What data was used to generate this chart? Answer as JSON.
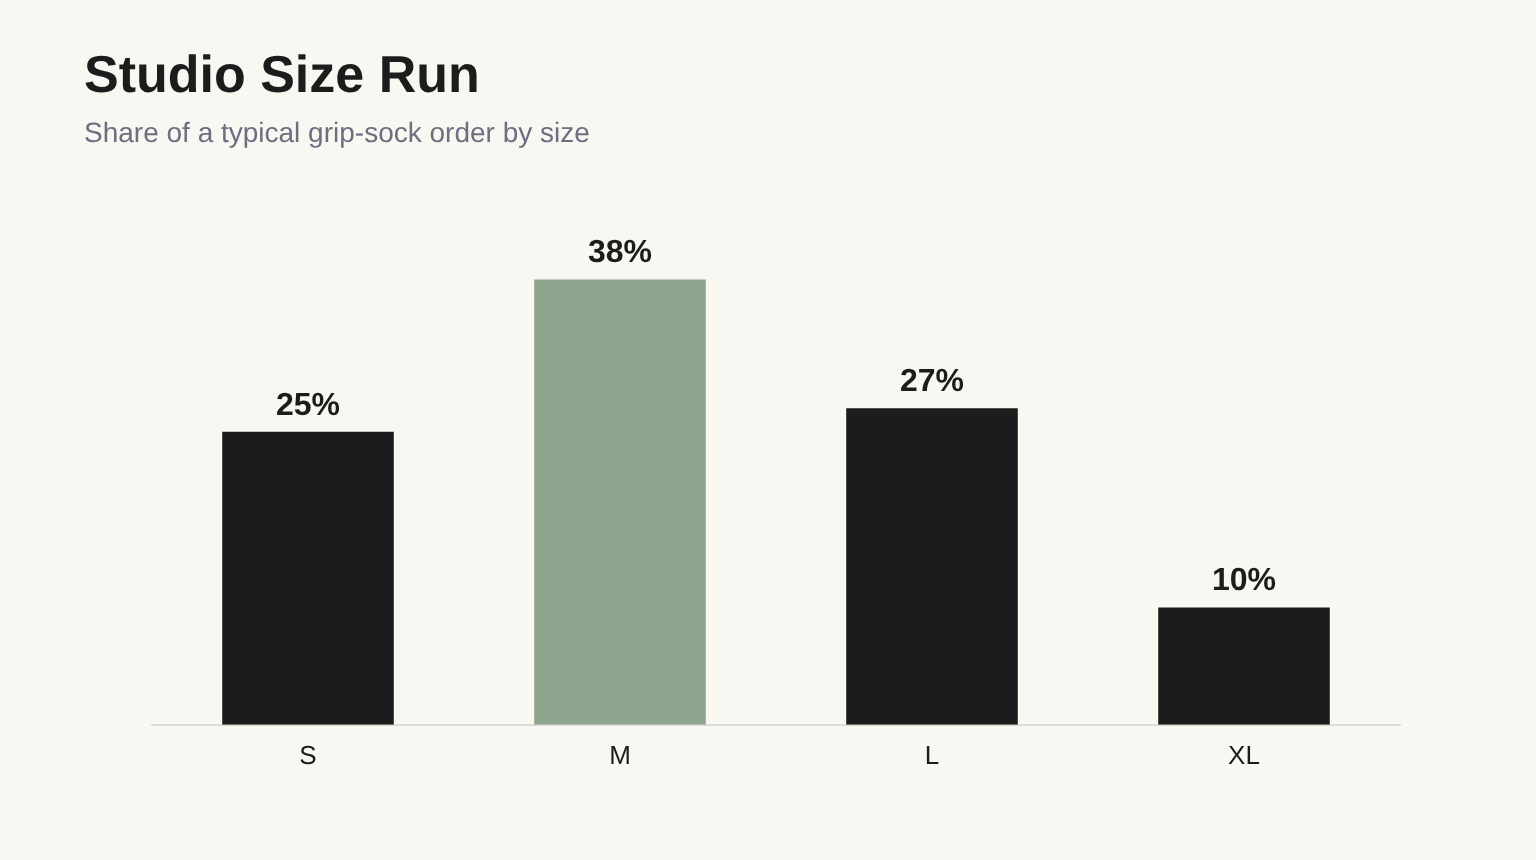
{
  "chart_data": {
    "type": "bar",
    "title": "Studio Size Run",
    "subtitle": "Share of a typical grip-sock order by size",
    "categories": [
      "S",
      "M",
      "L",
      "XL"
    ],
    "values": [
      25,
      38,
      27,
      10
    ],
    "colors": [
      "#1c1c1c",
      "#8fa68e",
      "#1c1c1c",
      "#1c1c1c"
    ],
    "value_labels": [
      "25%",
      "38%",
      "27%",
      "10%"
    ],
    "grid": false,
    "legend": false
  }
}
